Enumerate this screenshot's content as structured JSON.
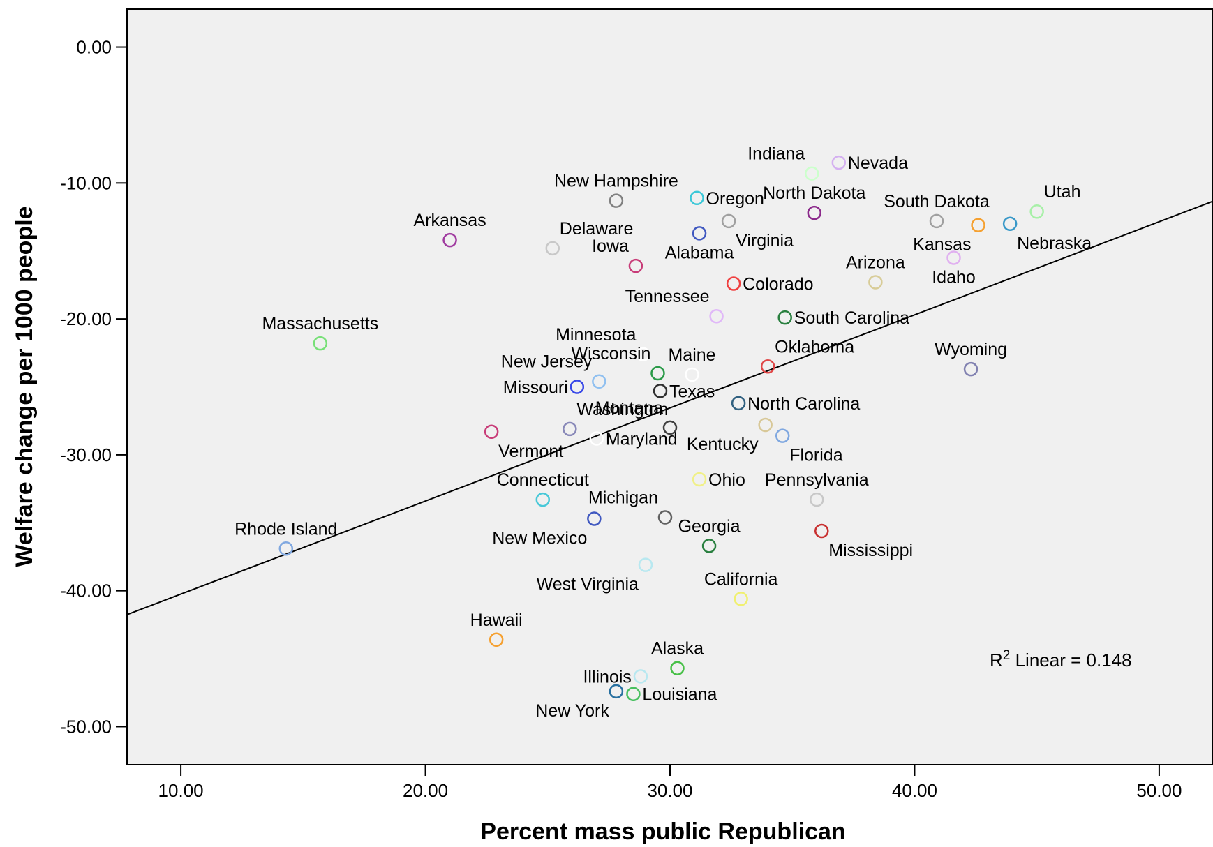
{
  "chart_data": {
    "type": "scatter",
    "title": "",
    "xlabel": "Percent mass public Republican",
    "ylabel": "Welfare change per 1000 people",
    "xlim": [
      7.8,
      52.2
    ],
    "ylim": [
      -52.8,
      2.8
    ],
    "xticks": [
      10,
      20,
      30,
      40,
      50
    ],
    "xtick_labels": [
      "10.00",
      "20.00",
      "30.00",
      "40.00",
      "50.00"
    ],
    "yticks": [
      0,
      -10,
      -20,
      -30,
      -40,
      -50
    ],
    "ytick_labels": [
      "0.00",
      "-10.00",
      "-20.00",
      "-30.00",
      "-40.00",
      "-50.00"
    ],
    "grid": false,
    "legend": "none",
    "plot_background": "#f0f0f0",
    "fit_line": {
      "type": "linear",
      "intercept": -47.1,
      "slope": 0.685,
      "color": "#000000"
    },
    "annotation": {
      "prefix": "R",
      "superscript": "2",
      "text": " Linear = 0.148",
      "position": "bottom-right"
    },
    "points": [
      {
        "name": "Indiana",
        "x": 35.8,
        "y": -9.3,
        "color": "#ccffcc",
        "label_pos": "above-left"
      },
      {
        "name": "Nevada",
        "x": 36.9,
        "y": -8.5,
        "color": "#d4b0f0",
        "label_pos": "right"
      },
      {
        "name": "New Hampshire",
        "x": 27.8,
        "y": -11.3,
        "color": "#808080",
        "label_pos": "above"
      },
      {
        "name": "Oregon",
        "x": 31.1,
        "y": -11.1,
        "color": "#3cc8d8",
        "label_pos": "right"
      },
      {
        "name": "North Dakota",
        "x": 35.9,
        "y": -12.2,
        "color": "#8b2a8b",
        "label_pos": "above"
      },
      {
        "name": "South Dakota",
        "x": 40.9,
        "y": -12.8,
        "color": "#a0a0a0",
        "label_pos": "above"
      },
      {
        "name": "Utah",
        "x": 45.0,
        "y": -12.1,
        "color": "#a8f0a8",
        "label_pos": "above-right"
      },
      {
        "name": "Arkansas",
        "x": 21.0,
        "y": -14.2,
        "color": "#a03ca0",
        "label_pos": "above"
      },
      {
        "name": "Delaware",
        "x": 25.2,
        "y": -14.8,
        "color": "#c8c8c8",
        "label_pos": "above-right"
      },
      {
        "name": "Virginia",
        "x": 32.4,
        "y": -12.8,
        "color": "#a0a0a0",
        "label_pos": "below-right"
      },
      {
        "name": "Alabama",
        "x": 31.2,
        "y": -13.7,
        "color": "#4058c0",
        "label_pos": "below"
      },
      {
        "name": "Kansas",
        "x": 42.6,
        "y": -13.1,
        "color": "#f5a030",
        "label_pos": "below-left"
      },
      {
        "name": "Nebraska",
        "x": 43.9,
        "y": -13.0,
        "color": "#3898c8",
        "label_pos": "below-right"
      },
      {
        "name": "Idaho",
        "x": 41.6,
        "y": -15.5,
        "color": "#e0b0f0",
        "label_pos": "below"
      },
      {
        "name": "Iowa",
        "x": 28.6,
        "y": -16.1,
        "color": "#c83c78",
        "label_pos": "above-left"
      },
      {
        "name": "Arizona",
        "x": 38.4,
        "y": -17.3,
        "color": "#d8cc98",
        "label_pos": "above"
      },
      {
        "name": "Colorado",
        "x": 32.6,
        "y": -17.4,
        "color": "#f04040",
        "label_pos": "right"
      },
      {
        "name": "Minnesota",
        "x": 28.9,
        "y": -22.6,
        "color": "#ffffff",
        "label_pos": "above-left"
      },
      {
        "name": "Tennessee",
        "x": 31.9,
        "y": -19.8,
        "color": "#e0b8f8",
        "label_pos": "above-left"
      },
      {
        "name": "South Carolina",
        "x": 34.7,
        "y": -19.9,
        "color": "#2a8040",
        "label_pos": "right"
      },
      {
        "name": "Massachusetts",
        "x": 15.7,
        "y": -21.8,
        "color": "#78e078",
        "label_pos": "above"
      },
      {
        "name": "Wisconsin",
        "x": 29.5,
        "y": -24.0,
        "color": "#2a9a48",
        "label_pos": "above-left"
      },
      {
        "name": "Maine",
        "x": 30.9,
        "y": -24.1,
        "color": "#ffffff",
        "label_pos": "above"
      },
      {
        "name": "Oklahoma",
        "x": 34.0,
        "y": -23.5,
        "color": "#e04848",
        "label_pos": "above-right"
      },
      {
        "name": "Wyoming",
        "x": 42.3,
        "y": -23.7,
        "color": "#8080b0",
        "label_pos": "above"
      },
      {
        "name": "New Jersey",
        "x": 27.1,
        "y": -24.6,
        "color": "#90c0f0",
        "label_pos": "above-left"
      },
      {
        "name": "Missouri",
        "x": 26.2,
        "y": -25.0,
        "color": "#3848e8",
        "label_pos": "left"
      },
      {
        "name": "Texas",
        "x": 29.6,
        "y": -25.3,
        "color": "#303030",
        "label_pos": "right"
      },
      {
        "name": "North Carolina",
        "x": 32.8,
        "y": -26.2,
        "color": "#306080",
        "label_pos": "right"
      },
      {
        "name": "Washington",
        "x": 25.9,
        "y": -28.1,
        "color": "#8888b8",
        "label_pos": "above-right"
      },
      {
        "name": "Montana",
        "x": 30.0,
        "y": -28.0,
        "color": "#404040",
        "label_pos": "above-left"
      },
      {
        "name": "Vermont",
        "x": 22.7,
        "y": -28.3,
        "color": "#c83c78",
        "label_pos": "below-right"
      },
      {
        "name": "Kentucky",
        "x": 33.9,
        "y": -27.8,
        "color": "#d8c898",
        "label_pos": "below-left"
      },
      {
        "name": "Florida",
        "x": 34.6,
        "y": -28.6,
        "color": "#80a8e0",
        "label_pos": "below-right"
      },
      {
        "name": "Maryland",
        "x": 27.0,
        "y": -28.8,
        "color": "#ffffff",
        "label_pos": "right"
      },
      {
        "name": "Connecticut",
        "x": 24.8,
        "y": -33.3,
        "color": "#48c8d8",
        "label_pos": "above"
      },
      {
        "name": "Ohio",
        "x": 31.2,
        "y": -31.8,
        "color": "#f0f088",
        "label_pos": "right"
      },
      {
        "name": "Pennsylvania",
        "x": 36.0,
        "y": -33.3,
        "color": "#c8c8c8",
        "label_pos": "above"
      },
      {
        "name": "Michigan",
        "x": 29.8,
        "y": -34.6,
        "color": "#606060",
        "label_pos": "above-left"
      },
      {
        "name": "New Mexico",
        "x": 26.9,
        "y": -34.7,
        "color": "#4058c0",
        "label_pos": "below-left"
      },
      {
        "name": "Rhode Island",
        "x": 14.3,
        "y": -36.9,
        "color": "#80a8e0",
        "label_pos": "above"
      },
      {
        "name": "Georgia",
        "x": 31.6,
        "y": -36.7,
        "color": "#2a8040",
        "label_pos": "above"
      },
      {
        "name": "Mississippi",
        "x": 36.2,
        "y": -35.6,
        "color": "#c83030",
        "label_pos": "below-right"
      },
      {
        "name": "West Virginia",
        "x": 29.0,
        "y": -38.1,
        "color": "#b8e8f0",
        "label_pos": "below-left"
      },
      {
        "name": "California",
        "x": 32.9,
        "y": -40.6,
        "color": "#f0f070",
        "label_pos": "above"
      },
      {
        "name": "Hawaii",
        "x": 22.9,
        "y": -43.6,
        "color": "#f5a030",
        "label_pos": "above"
      },
      {
        "name": "Alaska",
        "x": 30.3,
        "y": -45.7,
        "color": "#48c048",
        "label_pos": "above"
      },
      {
        "name": "Illinois",
        "x": 28.8,
        "y": -46.3,
        "color": "#b8e8f0",
        "label_pos": "left"
      },
      {
        "name": "Louisiana",
        "x": 28.5,
        "y": -47.6,
        "color": "#48c060",
        "label_pos": "right"
      },
      {
        "name": "New York",
        "x": 27.8,
        "y": -47.4,
        "color": "#2870a0",
        "label_pos": "below-left"
      }
    ]
  }
}
